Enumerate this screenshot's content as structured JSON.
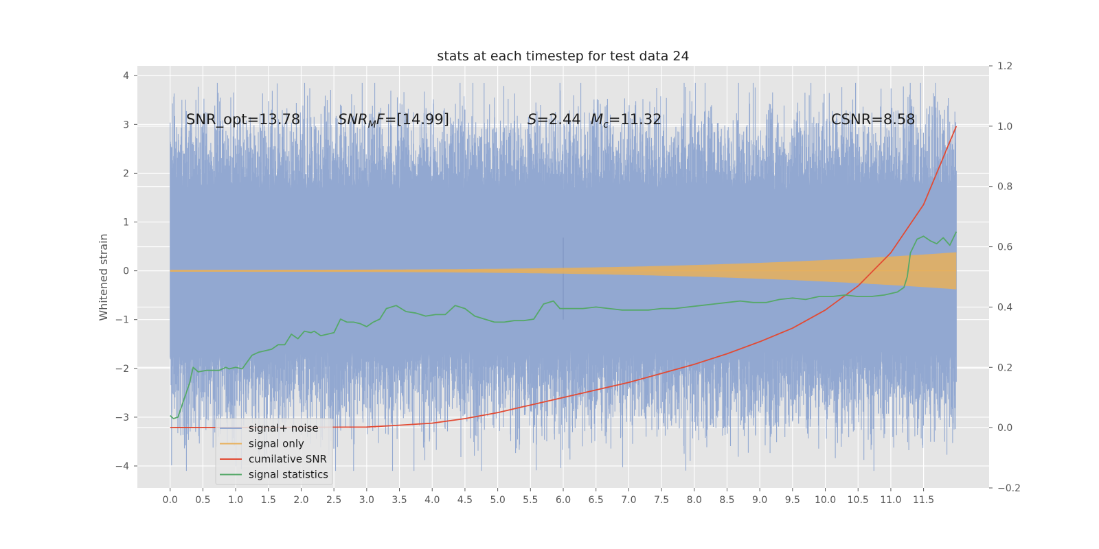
{
  "chart_data": {
    "type": "line",
    "title": "stats at each timestep for test data 24",
    "ylabel": "Whitened strain",
    "xlabel": "",
    "xlim": [
      -0.5,
      12.5
    ],
    "ylim": [
      -4.45,
      4.2
    ],
    "y2lim": [
      -0.2,
      1.2
    ],
    "grid": true,
    "legend_position": "lower-left",
    "x_ticks": [
      "0.0",
      "0.5",
      "1.0",
      "1.5",
      "2.0",
      "2.5",
      "3.0",
      "3.5",
      "4.0",
      "4.5",
      "5.0",
      "5.5",
      "6.0",
      "6.5",
      "7.0",
      "7.5",
      "8.0",
      "8.5",
      "9.0",
      "9.5",
      "10.0",
      "10.5",
      "11.0",
      "11.5"
    ],
    "y_ticks": [
      "4",
      "3",
      "2",
      "1",
      "0",
      "−1",
      "−2",
      "−3",
      "−4"
    ],
    "y2_ticks": [
      "1.2",
      "1.0",
      "0.8",
      "0.6",
      "0.4",
      "0.2",
      "0.0",
      "−0.2"
    ],
    "annotations": [
      {
        "id": "snr-opt",
        "text": "SNR_opt=13.78"
      },
      {
        "id": "snr-mf-sym",
        "text": "SNR",
        "sub": "M",
        "rest": "F=[14.99]"
      },
      {
        "id": "s-val",
        "sym": "S",
        "rest": "=2.44"
      },
      {
        "id": "mc-val",
        "sym": "M",
        "sub": "c",
        "rest": "=11.32"
      },
      {
        "id": "csnr",
        "text": "CSNR=8.58"
      }
    ],
    "series": [
      {
        "name": "signal+ noise",
        "color": "#92a8d1",
        "axis": "left",
        "noise_amplitude": 1.75,
        "x_range": [
          0,
          12
        ]
      },
      {
        "name": "signal only",
        "color": "#e8b05a",
        "axis": "left",
        "envelope_start": 0.02,
        "envelope_end": 0.38
      },
      {
        "name": "cumilative SNR",
        "color": "#e24a33",
        "axis": "right",
        "x": [
          0,
          3,
          3.5,
          4,
          4.5,
          5,
          5.5,
          6,
          6.5,
          7,
          7.5,
          8,
          8.5,
          9,
          9.5,
          10,
          10.5,
          11,
          11.5,
          12
        ],
        "y": [
          0.0,
          0.002,
          0.008,
          0.015,
          0.03,
          0.05,
          0.075,
          0.1,
          0.125,
          0.15,
          0.18,
          0.21,
          0.245,
          0.285,
          0.33,
          0.39,
          0.47,
          0.58,
          0.74,
          1.0
        ]
      },
      {
        "name": "signal statistics",
        "color": "#55a868",
        "axis": "right",
        "x": [
          0,
          0.05,
          0.12,
          0.3,
          0.35,
          0.43,
          0.55,
          0.65,
          0.75,
          0.85,
          0.9,
          1.0,
          1.1,
          1.25,
          1.35,
          1.45,
          1.55,
          1.65,
          1.75,
          1.85,
          1.95,
          2.05,
          2.15,
          2.2,
          2.3,
          2.4,
          2.5,
          2.6,
          2.7,
          2.8,
          2.9,
          3.0,
          3.1,
          3.2,
          3.3,
          3.45,
          3.6,
          3.75,
          3.9,
          4.05,
          4.2,
          4.35,
          4.5,
          4.65,
          4.8,
          4.95,
          5.1,
          5.25,
          5.4,
          5.55,
          5.7,
          5.85,
          5.95,
          6.1,
          6.3,
          6.5,
          6.7,
          6.9,
          7.1,
          7.3,
          7.5,
          7.7,
          7.9,
          8.1,
          8.3,
          8.5,
          8.7,
          8.9,
          9.1,
          9.3,
          9.5,
          9.7,
          9.9,
          10.1,
          10.3,
          10.5,
          10.7,
          10.9,
          11.0,
          11.1,
          11.2,
          11.25,
          11.3,
          11.4,
          11.5,
          11.6,
          11.7,
          11.8,
          11.9,
          12.0
        ],
        "y": [
          0.04,
          0.03,
          0.035,
          0.15,
          0.2,
          0.185,
          0.19,
          0.19,
          0.19,
          0.2,
          0.195,
          0.2,
          0.195,
          0.24,
          0.25,
          0.255,
          0.26,
          0.275,
          0.275,
          0.31,
          0.295,
          0.32,
          0.315,
          0.32,
          0.305,
          0.31,
          0.315,
          0.36,
          0.35,
          0.35,
          0.345,
          0.335,
          0.35,
          0.36,
          0.395,
          0.405,
          0.385,
          0.38,
          0.37,
          0.375,
          0.375,
          0.405,
          0.395,
          0.37,
          0.36,
          0.35,
          0.35,
          0.355,
          0.355,
          0.36,
          0.41,
          0.42,
          0.395,
          0.395,
          0.395,
          0.4,
          0.395,
          0.39,
          0.39,
          0.39,
          0.395,
          0.395,
          0.4,
          0.405,
          0.41,
          0.415,
          0.42,
          0.415,
          0.415,
          0.425,
          0.43,
          0.425,
          0.435,
          0.435,
          0.44,
          0.435,
          0.435,
          0.44,
          0.445,
          0.45,
          0.465,
          0.5,
          0.58,
          0.625,
          0.635,
          0.62,
          0.61,
          0.63,
          0.605,
          0.65
        ]
      }
    ]
  }
}
